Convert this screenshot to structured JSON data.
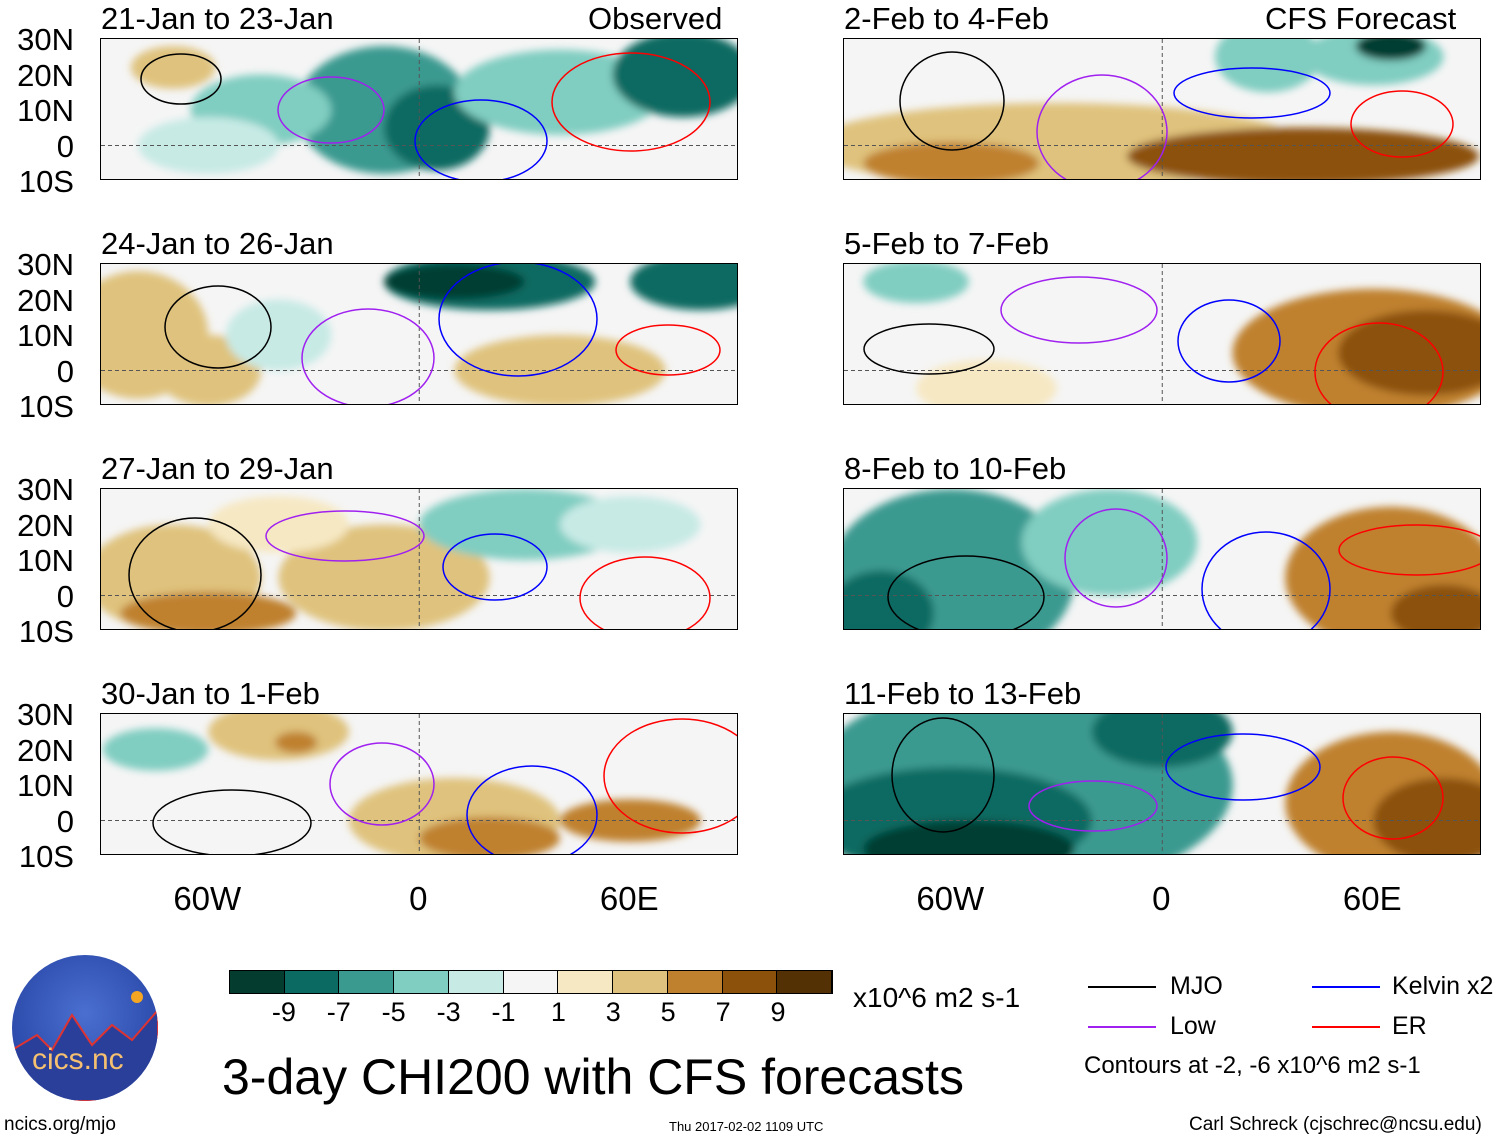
{
  "header": {
    "observed_label": "Observed",
    "forecast_label": "CFS Forecast"
  },
  "panels": [
    {
      "title": "21-Jan to 23-Jan",
      "column": "observed"
    },
    {
      "title": "24-Jan to 26-Jan",
      "column": "observed"
    },
    {
      "title": "27-Jan to 29-Jan",
      "column": "observed"
    },
    {
      "title": "30-Jan to 1-Feb",
      "column": "observed"
    },
    {
      "title": "2-Feb to 4-Feb",
      "column": "forecast"
    },
    {
      "title": "5-Feb to 7-Feb",
      "column": "forecast"
    },
    {
      "title": "8-Feb to 10-Feb",
      "column": "forecast"
    },
    {
      "title": "11-Feb to 13-Feb",
      "column": "forecast"
    }
  ],
  "chart_data": {
    "type": "heatmap",
    "title": "3-day CHI200 with CFS forecasts",
    "variable": "CHI200 anomaly",
    "lat_ticks": [
      "30N",
      "20N",
      "10N",
      "0",
      "10S"
    ],
    "lon_ticks": [
      "60W",
      "0",
      "60E"
    ],
    "lat_range": [
      -10,
      30
    ],
    "lon_range": [
      -90,
      90
    ],
    "colorbar": {
      "ticks": [
        "-9",
        "-7",
        "-5",
        "-3",
        "-1",
        "1",
        "3",
        "5",
        "7",
        "9"
      ],
      "colors": [
        "#053c30",
        "#0b6b62",
        "#3a9a90",
        "#80cdc1",
        "#c7eae5",
        "#f5f5f5",
        "#f6e8c3",
        "#dfc27d",
        "#bf812d",
        "#8c510a",
        "#543005"
      ],
      "units": "x10^6 m2 s-1"
    },
    "legend": [
      {
        "label": "MJO",
        "color": "#000000"
      },
      {
        "label": "Low",
        "color": "#a020f0"
      },
      {
        "label": "Kelvin x2",
        "color": "#0000ff"
      },
      {
        "label": "ER",
        "color": "#ff0000"
      }
    ],
    "contour_note": "Contours at -2, -6 x10^6 m2 s-1"
  },
  "footer": {
    "logo_text": "cics.nc",
    "logo_ring": "Cooperative Institute for Climate and Satellites",
    "url": "ncics.org/mjo",
    "timestamp": "Thu 2017-02-02 1109 UTC",
    "author": "Carl Schreck (cjschrec@ncsu.edu)"
  }
}
